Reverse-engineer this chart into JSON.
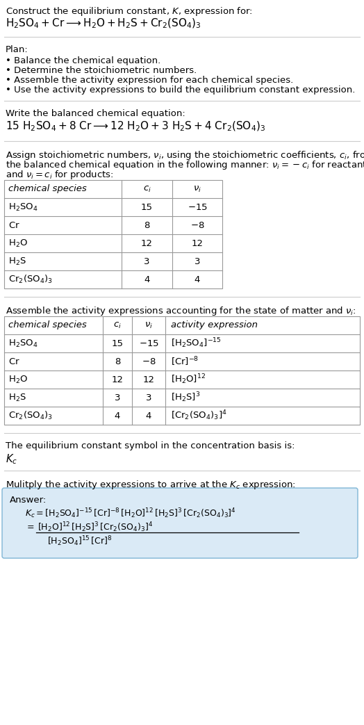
{
  "title_line1": "Construct the equilibrium constant, $K$, expression for:",
  "title_line2": "$\\mathrm{H_2SO_4 + Cr \\longrightarrow H_2O + H_2S + Cr_2(SO_4)_3}$",
  "plan_header": "Plan:",
  "plan_bullets": [
    "• Balance the chemical equation.",
    "• Determine the stoichiometric numbers.",
    "• Assemble the activity expression for each chemical species.",
    "• Use the activity expressions to build the equilibrium constant expression."
  ],
  "balanced_header": "Write the balanced chemical equation:",
  "balanced_eq": "$\\mathrm{15\\ H_2SO_4 + 8\\ Cr \\longrightarrow 12\\ H_2O + 3\\ H_2S + 4\\ Cr_2(SO_4)_3}$",
  "stoich_line1": "Assign stoichiometric numbers, $\\nu_i$, using the stoichiometric coefficients, $c_i$, from",
  "stoich_line2": "the balanced chemical equation in the following manner: $\\nu_i = -c_i$ for reactants",
  "stoich_line3": "and $\\nu_i = c_i$ for products:",
  "table1_col0": "chemical species",
  "table1_col1": "$c_i$",
  "table1_col2": "$\\nu_i$",
  "table1_rows": [
    [
      "$\\mathrm{H_2SO_4}$",
      "15",
      "$-15$"
    ],
    [
      "$\\mathrm{Cr}$",
      "8",
      "$-8$"
    ],
    [
      "$\\mathrm{H_2O}$",
      "12",
      "12"
    ],
    [
      "$\\mathrm{H_2S}$",
      "3",
      "3"
    ],
    [
      "$\\mathrm{Cr_2(SO_4)_3}$",
      "4",
      "4"
    ]
  ],
  "activity_header": "Assemble the activity expressions accounting for the state of matter and $\\nu_i$:",
  "table2_col0": "chemical species",
  "table2_col1": "$c_i$",
  "table2_col2": "$\\nu_i$",
  "table2_col3": "activity expression",
  "table2_rows": [
    [
      "$\\mathrm{H_2SO_4}$",
      "15",
      "$-15$",
      "$[\\mathrm{H_2SO_4}]^{-15}$"
    ],
    [
      "$\\mathrm{Cr}$",
      "8",
      "$-8$",
      "$[\\mathrm{Cr}]^{-8}$"
    ],
    [
      "$\\mathrm{H_2O}$",
      "12",
      "12",
      "$[\\mathrm{H_2O}]^{12}$"
    ],
    [
      "$\\mathrm{H_2S}$",
      "3",
      "3",
      "$[\\mathrm{H_2S}]^{3}$"
    ],
    [
      "$\\mathrm{Cr_2(SO_4)_3}$",
      "4",
      "4",
      "$[\\mathrm{Cr_2(SO_4)_3}]^{4}$"
    ]
  ],
  "kc_header": "The equilibrium constant symbol in the concentration basis is:",
  "kc_symbol": "$K_c$",
  "multiply_header": "Mulitply the activity expressions to arrive at the $K_c$ expression:",
  "answer_label": "Answer:",
  "answer_line1": "$K_c = [\\mathrm{H_2SO_4}]^{-15}\\,[\\mathrm{Cr}]^{-8}\\,[\\mathrm{H_2O}]^{12}\\,[\\mathrm{H_2S}]^{3}\\,[\\mathrm{Cr_2(SO_4)_3}]^{4}$",
  "answer_num": "$[\\mathrm{H_2O}]^{12}\\,[\\mathrm{H_2S}]^{3}\\,[\\mathrm{Cr_2(SO_4)_3}]^{4}$",
  "answer_den": "$[\\mathrm{H_2SO_4}]^{15}\\,[\\mathrm{Cr}]^{8}$",
  "bg_color": "#ffffff",
  "table_line_color": "#999999",
  "answer_box_bg": "#daeaf6",
  "answer_box_border": "#7fb5d5",
  "text_color": "#000000",
  "sep_color": "#cccccc"
}
